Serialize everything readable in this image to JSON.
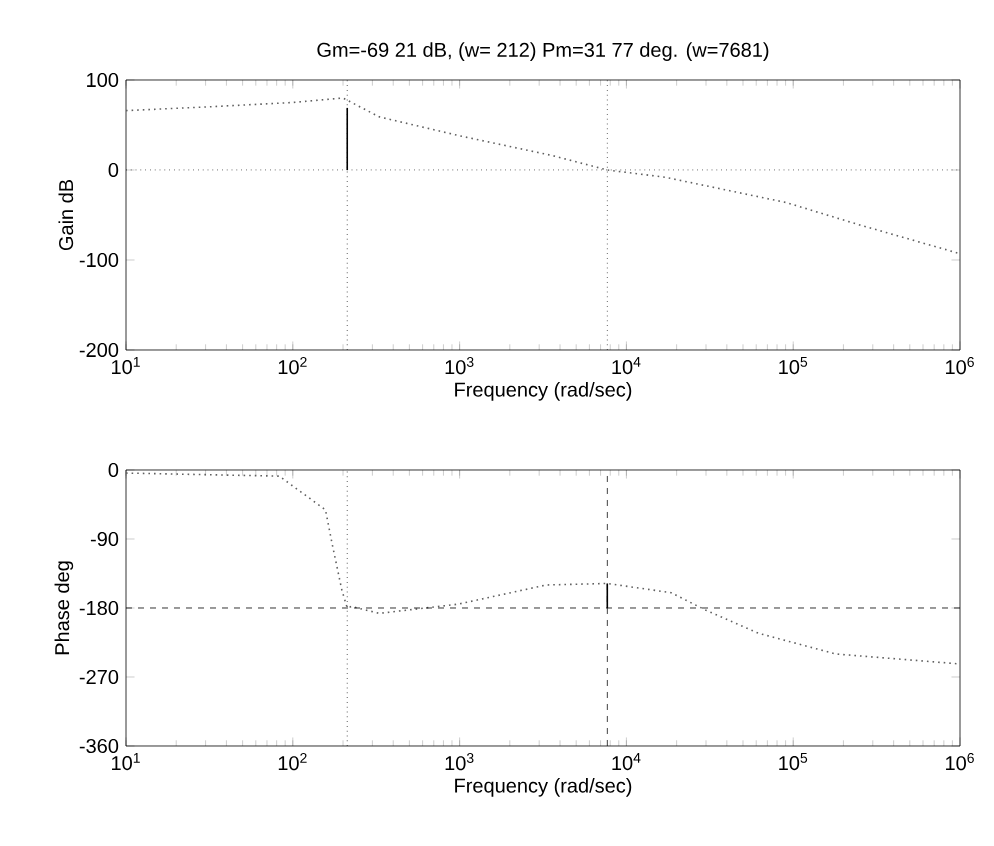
{
  "chart_data": [
    {
      "type": "line",
      "title": "Gm=-69 21 dB, (w= 212)  Pm=31 77 deg. (w=7681)",
      "xlabel": "Frequency (rad/sec)",
      "ylabel": "Gain dB",
      "log": "x",
      "xlim": [
        10,
        1000000
      ],
      "xticks": [
        {
          "value": 10,
          "label": "10$^{1}$"
        },
        {
          "value": 100,
          "label": "10$^{2}$"
        },
        {
          "value": 1000,
          "label": "10$^{3}$"
        },
        {
          "value": 10000,
          "label": "10$^{4}$"
        },
        {
          "value": 100000,
          "label": "10$^{5}$"
        },
        {
          "value": 1000000,
          "label": "10$^{6}$"
        }
      ],
      "ylim": [
        -200,
        100
      ],
      "yticks": [
        -200,
        -100,
        0,
        100
      ],
      "series": [
        {
          "color": "#606060",
          "line_style": "dotted",
          "x": [
            10,
            30,
            100,
            200,
            330,
            1000,
            3600,
            7681,
            17000,
            90000,
            250000,
            1000000
          ],
          "values": [
            66,
            70,
            75,
            80,
            59,
            38,
            16,
            0,
            -8,
            -36,
            -61,
            -93
          ]
        },
        {
          "color": "#000000",
          "line_style": "solid",
          "x": [
            212,
            212
          ],
          "values": [
            0,
            69
          ]
        }
      ],
      "ref_lines": [
        {
          "axis": "y",
          "value": 0,
          "color": "#000000",
          "line_style": "dotted"
        },
        {
          "axis": "x",
          "value": 212,
          "color": "#000000",
          "line_style": "dotted"
        },
        {
          "axis": "x",
          "value": 7681,
          "color": "#000000",
          "line_style": "dotted"
        }
      ]
    },
    {
      "type": "line",
      "xlabel": "Frequency (rad/sec)",
      "ylabel": "Phase deg",
      "log": "x",
      "xlim": [
        10,
        1000000
      ],
      "xticks": [
        {
          "value": 10,
          "label": "10$^{1}$"
        },
        {
          "value": 100,
          "label": "10$^{2}$"
        },
        {
          "value": 1000,
          "label": "10$^{3}$"
        },
        {
          "value": 10000,
          "label": "10$^{4}$"
        },
        {
          "value": 100000,
          "label": "10$^{5}$"
        },
        {
          "value": 1000000,
          "label": "10$^{6}$"
        }
      ],
      "ylim": [
        -360,
        0
      ],
      "yticks": [
        -360,
        -270,
        -180,
        -90,
        0
      ],
      "series": [
        {
          "color": "#606060",
          "line_style": "dotted",
          "x": [
            10,
            83,
            157,
            172,
            197,
            212,
            225,
            330,
            980,
            3300,
            7681,
            18500,
            30000,
            62000,
            180000,
            1000000
          ],
          "values": [
            -4,
            -8,
            -52,
            -96,
            -157,
            -180,
            -178,
            -187,
            -175,
            -150,
            -148,
            -160,
            -183,
            -213,
            -240,
            -253
          ]
        },
        {
          "color": "#000000",
          "line_style": "solid",
          "x": [
            7681,
            7681
          ],
          "values": [
            -180,
            -148
          ]
        }
      ],
      "ref_lines": [
        {
          "axis": "y",
          "value": -180,
          "color": "#000000",
          "line_style": "dashed"
        },
        {
          "axis": "x",
          "value": 212,
          "color": "#000000",
          "line_style": "dotted"
        },
        {
          "axis": "x",
          "value": 7681,
          "color": "#000000",
          "line_style": "dashed"
        }
      ]
    }
  ]
}
